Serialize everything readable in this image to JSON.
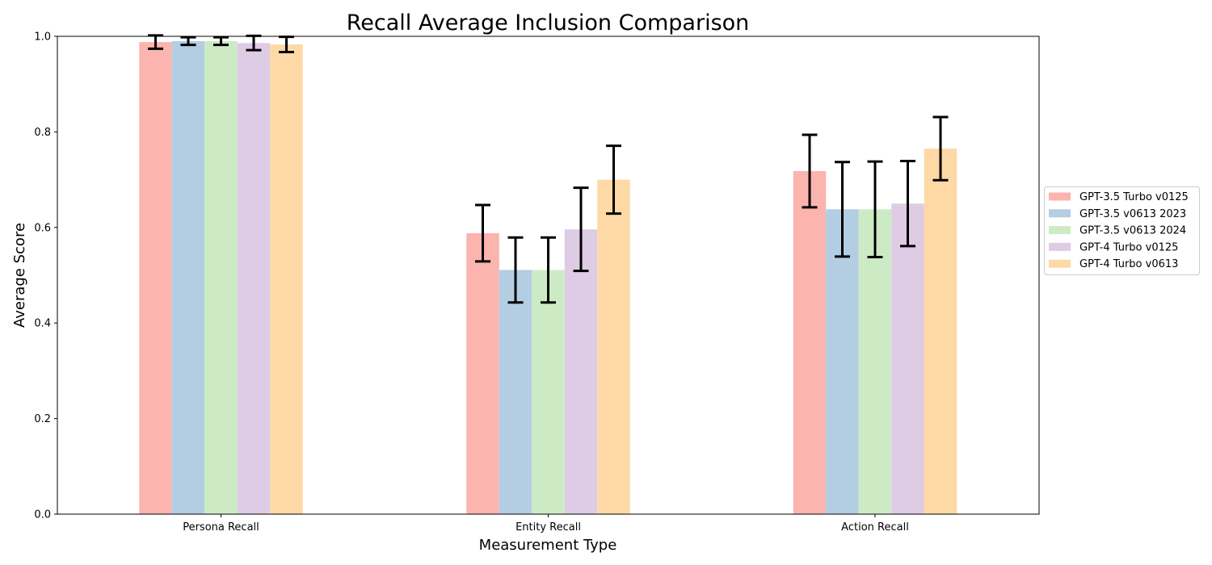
{
  "chart_data": {
    "type": "bar",
    "title": "Recall Average Inclusion Comparison",
    "xlabel": "Measurement Type",
    "ylabel": "Average Score",
    "ylim": [
      0,
      1
    ],
    "yticks": [
      "0.0",
      "0.2",
      "0.4",
      "0.6",
      "0.8",
      "1.0"
    ],
    "categories": [
      "Persona Recall",
      "Entity Recall",
      "Action Recall"
    ],
    "legend_position": "right-center",
    "grid": false,
    "series": [
      {
        "name": "GPT-3.5 Turbo v0125",
        "color": "#fbb4ae",
        "values": [
          0.988,
          0.588,
          0.718
        ],
        "errors": [
          0.014,
          0.059,
          0.076
        ]
      },
      {
        "name": "GPT-3.5 v0613 2023",
        "color": "#b3cde3",
        "values": [
          0.99,
          0.511,
          0.638
        ],
        "errors": [
          0.008,
          0.068,
          0.099
        ]
      },
      {
        "name": "GPT-3.5 v0613 2024",
        "color": "#ccebc5",
        "values": [
          0.99,
          0.511,
          0.638
        ],
        "errors": [
          0.008,
          0.068,
          0.1
        ]
      },
      {
        "name": "GPT-4 Turbo v0125",
        "color": "#decbe4",
        "values": [
          0.986,
          0.596,
          0.65
        ],
        "errors": [
          0.015,
          0.087,
          0.089
        ]
      },
      {
        "name": "GPT-4 Turbo v0613",
        "color": "#fed9a6",
        "values": [
          0.983,
          0.7,
          0.765
        ],
        "errors": [
          0.016,
          0.071,
          0.066
        ]
      }
    ]
  }
}
